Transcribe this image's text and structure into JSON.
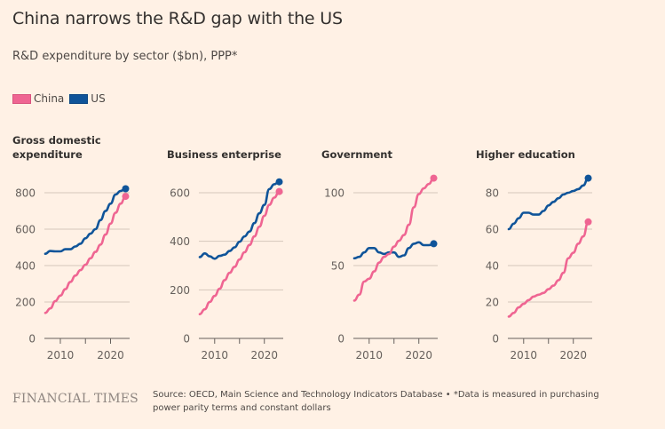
{
  "header": {
    "title": "China narrows the R&D gap with the US",
    "subtitle": "R&D expenditure by sector ($bn), PPP*"
  },
  "legend": [
    {
      "label": "China",
      "color": "#ef6592"
    },
    {
      "label": "US",
      "color": "#0f5499"
    }
  ],
  "footer": {
    "brand": "FINANCIAL TIMES",
    "source_line1": "Source: OECD, Main Science and Technology Indicators Database • *Data is measured in purchasing",
    "source_line2": "power parity terms and constant dollars"
  },
  "chart_data": [
    {
      "type": "line",
      "title_lines": [
        "Gross domestic",
        "expenditure"
      ],
      "x": [
        2007,
        2008,
        2009,
        2010,
        2011,
        2012,
        2013,
        2014,
        2015,
        2016,
        2017,
        2018,
        2019,
        2020,
        2021,
        2022,
        2023
      ],
      "xticks": [
        2010,
        2015,
        2020
      ],
      "xticklabels": [
        "2010",
        "",
        "2020"
      ],
      "yticks": [
        0,
        200,
        400,
        600,
        800
      ],
      "ylim": [
        0,
        800
      ],
      "grid": true,
      "series": [
        {
          "name": "China",
          "values": [
            140,
            165,
            205,
            235,
            270,
            310,
            345,
            375,
            405,
            440,
            475,
            515,
            570,
            630,
            690,
            740,
            780
          ]
        },
        {
          "name": "US",
          "values": [
            465,
            480,
            478,
            478,
            490,
            490,
            505,
            520,
            550,
            575,
            600,
            650,
            700,
            740,
            790,
            810,
            822
          ]
        }
      ]
    },
    {
      "type": "line",
      "title_lines": [
        "Business enterprise"
      ],
      "x": [
        2007,
        2008,
        2009,
        2010,
        2011,
        2012,
        2013,
        2014,
        2015,
        2016,
        2017,
        2018,
        2019,
        2020,
        2021,
        2022,
        2023
      ],
      "xticks": [
        2010,
        2015,
        2020
      ],
      "xticklabels": [
        "2010",
        "",
        "2020"
      ],
      "yticks": [
        0,
        200,
        400,
        600
      ],
      "ylim": [
        0,
        600
      ],
      "grid": true,
      "series": [
        {
          "name": "China",
          "values": [
            100,
            120,
            150,
            175,
            205,
            240,
            270,
            295,
            325,
            355,
            385,
            420,
            460,
            505,
            550,
            580,
            605
          ]
        },
        {
          "name": "US",
          "values": [
            335,
            350,
            338,
            328,
            340,
            345,
            360,
            375,
            398,
            420,
            440,
            475,
            515,
            550,
            615,
            635,
            645
          ]
        }
      ]
    },
    {
      "type": "line",
      "title_lines": [
        "Government"
      ],
      "x": [
        2007,
        2008,
        2009,
        2010,
        2011,
        2012,
        2013,
        2014,
        2015,
        2016,
        2017,
        2018,
        2019,
        2020,
        2021,
        2022,
        2023
      ],
      "xticks": [
        2010,
        2015,
        2020
      ],
      "xticklabels": [
        "2010",
        "",
        "2020"
      ],
      "yticks": [
        0,
        50,
        100
      ],
      "ylim": [
        0,
        100
      ],
      "grid": true,
      "series": [
        {
          "name": "China",
          "values": [
            26,
            30,
            39,
            41,
            46,
            52,
            56,
            58,
            63,
            67,
            71,
            78,
            90,
            99,
            103,
            106,
            110
          ]
        },
        {
          "name": "US",
          "values": [
            55,
            56,
            59,
            62,
            62,
            59,
            58,
            59,
            59,
            56,
            57,
            62,
            65,
            66,
            64,
            64,
            65
          ]
        }
      ]
    },
    {
      "type": "line",
      "title_lines": [
        "Higher education"
      ],
      "x": [
        2007,
        2008,
        2009,
        2010,
        2011,
        2012,
        2013,
        2014,
        2015,
        2016,
        2017,
        2018,
        2019,
        2020,
        2021,
        2022,
        2023
      ],
      "xticks": [
        2010,
        2015,
        2020
      ],
      "xticklabels": [
        "2010",
        "",
        "2020"
      ],
      "yticks": [
        0,
        20,
        40,
        60,
        80
      ],
      "ylim": [
        0,
        80
      ],
      "grid": true,
      "series": [
        {
          "name": "China",
          "values": [
            12,
            14,
            17,
            19,
            21,
            23,
            24,
            25,
            27,
            29,
            32,
            36,
            44,
            47,
            52,
            56,
            64
          ]
        },
        {
          "name": "US",
          "values": [
            60,
            63,
            66,
            69,
            69,
            68,
            68,
            70,
            73,
            75,
            77,
            79,
            80,
            81,
            82,
            84,
            88
          ]
        }
      ]
    }
  ]
}
